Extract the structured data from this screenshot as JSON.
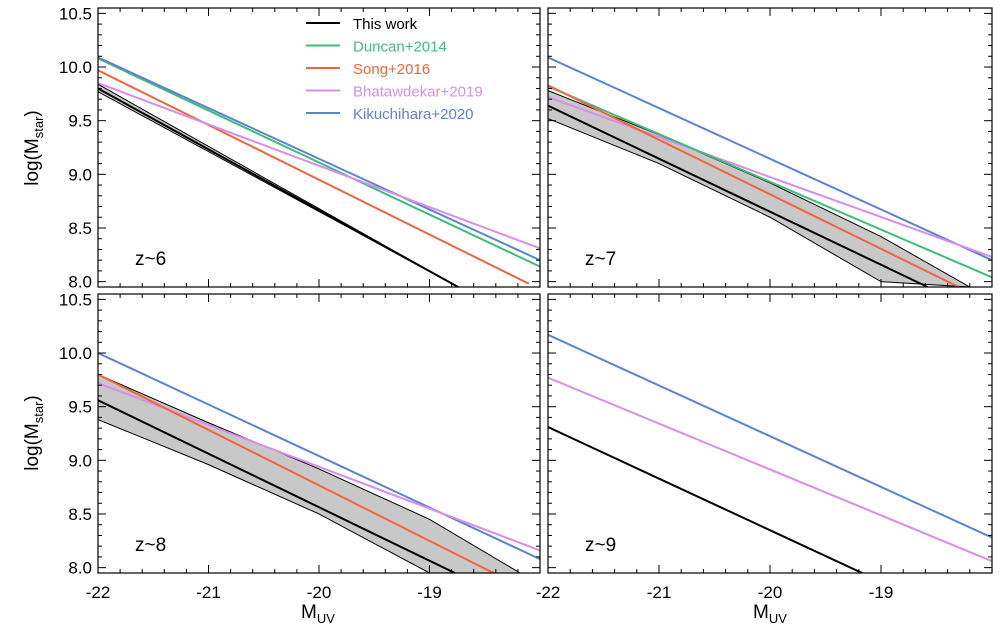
{
  "chart_data": {
    "type": "line",
    "ylabel": "log(M",
    "ylabel_sub": "star",
    "ylabel_close": ")",
    "xlabel": "M",
    "xlabel_sub": "UV",
    "xlim": [
      -22,
      -18
    ],
    "ylim": [
      7.95,
      10.55
    ],
    "xticks": [
      -22,
      -21,
      -20,
      -19
    ],
    "yticks": [
      8.0,
      8.5,
      9.0,
      9.5,
      10.0,
      10.5
    ],
    "xtick_labels": [
      "-22",
      "-21",
      "-20",
      "-19"
    ],
    "ytick_labels": [
      "8.0",
      "8.5",
      "9.0",
      "9.5",
      "10.0",
      "10.5"
    ],
    "legend": {
      "placement": "top-center",
      "entries": [
        {
          "name": "This work",
          "color": "#000000"
        },
        {
          "name": "Duncan+2014",
          "color": "#3dbd7a"
        },
        {
          "name": "Song+2016",
          "color": "#f0653c"
        },
        {
          "name": "Bhatawdekar+2019",
          "color": "#d88ee8"
        },
        {
          "name": "Kikuchihara+2020",
          "color": "#5a84d2"
        }
      ]
    },
    "panels": [
      {
        "label": "z~6",
        "series": [
          {
            "name": "Duncan+2014",
            "color": "#3dbd7a",
            "x": [
              -22,
              -18
            ],
            "y": [
              10.08,
              8.14
            ]
          },
          {
            "name": "Kikuchihara+2020",
            "color": "#5a84d2",
            "x": [
              -22,
              -18
            ],
            "y": [
              10.09,
              8.2
            ]
          },
          {
            "name": "Song+2016",
            "color": "#f0653c",
            "x": [
              -22,
              -18.1
            ],
            "y": [
              9.97,
              7.98
            ]
          },
          {
            "name": "Bhatawdekar+2019",
            "color": "#d88ee8",
            "x": [
              -22,
              -18
            ],
            "y": [
              9.85,
              8.31
            ]
          },
          {
            "name": "This work",
            "color": "#000000",
            "x": [
              -22,
              -18.74
            ],
            "y": [
              9.8,
              7.95
            ]
          }
        ],
        "band": {
          "x": [
            -22,
            -18.74
          ],
          "upper": [
            9.84,
            7.95
          ],
          "lower": [
            9.77,
            7.95
          ],
          "upper_end_x": -18.7,
          "lower_end_x": -18.78
        }
      },
      {
        "label": "z~7",
        "series": [
          {
            "name": "Kikuchihara+2020",
            "color": "#5a84d2",
            "x": [
              -22,
              -18
            ],
            "y": [
              10.09,
              8.2
            ]
          },
          {
            "name": "Bhatawdekar+2019",
            "color": "#d88ee8",
            "x": [
              -22,
              -18
            ],
            "y": [
              9.72,
              8.23
            ]
          },
          {
            "name": "Duncan+2014",
            "color": "#3dbd7a",
            "x": [
              -22,
              -18
            ],
            "y": [
              9.82,
              8.04
            ]
          },
          {
            "name": "Song+2016",
            "color": "#f0653c",
            "x": [
              -22,
              -18.3
            ],
            "y": [
              9.83,
              7.95
            ]
          },
          {
            "name": "This work",
            "color": "#000000",
            "x": [
              -22,
              -18.58
            ],
            "y": [
              9.64,
              7.95
            ]
          }
        ],
        "band": {
          "x": [
            -22,
            -21,
            -20,
            -19,
            -18.2
          ],
          "upper": [
            9.78,
            9.37,
            8.92,
            8.42,
            7.95
          ],
          "lower": [
            9.52,
            9.1,
            8.6,
            8.0,
            7.95
          ]
        }
      },
      {
        "label": "z~8",
        "series": [
          {
            "name": "Kikuchihara+2020",
            "color": "#5a84d2",
            "x": [
              -22,
              -18
            ],
            "y": [
              10.0,
              8.08
            ]
          },
          {
            "name": "Bhatawdekar+2019",
            "color": "#d88ee8",
            "x": [
              -22,
              -18
            ],
            "y": [
              9.72,
              8.16
            ]
          },
          {
            "name": "Song+2016",
            "color": "#f0653c",
            "x": [
              -22,
              -18.42
            ],
            "y": [
              9.8,
              7.95
            ]
          },
          {
            "name": "This work",
            "color": "#000000",
            "x": [
              -22,
              -18.77
            ],
            "y": [
              9.56,
              7.95
            ]
          }
        ],
        "band": {
          "x": [
            -22,
            -21,
            -20,
            -19,
            -18.18
          ],
          "upper": [
            9.8,
            9.35,
            8.92,
            8.45,
            7.95
          ],
          "lower": [
            9.38,
            8.96,
            8.5,
            7.95,
            7.95
          ]
        }
      },
      {
        "label": "z~9",
        "series": [
          {
            "name": "Kikuchihara+2020",
            "color": "#5a84d2",
            "x": [
              -22,
              -18
            ],
            "y": [
              10.17,
              8.28
            ]
          },
          {
            "name": "Bhatawdekar+2019",
            "color": "#d88ee8",
            "x": [
              -22,
              -18
            ],
            "y": [
              9.77,
              8.06
            ]
          },
          {
            "name": "This work",
            "color": "#000000",
            "x": [
              -22,
              -19.17
            ],
            "y": [
              9.31,
              7.95
            ]
          }
        ]
      }
    ]
  }
}
